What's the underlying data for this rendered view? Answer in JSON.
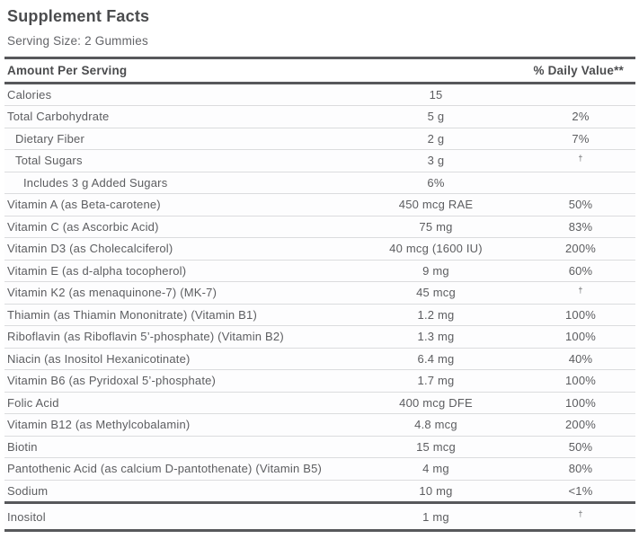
{
  "label": {
    "title": "Supplement Facts",
    "serving_size": "Serving Size: 2 Gummies",
    "header": {
      "amount_per_serving": "Amount Per Serving",
      "daily_value": "% Daily Value**"
    }
  },
  "table": {
    "columns": [
      "name",
      "amount",
      "daily_value"
    ],
    "dagger_symbol": "†",
    "rows": [
      {
        "name": "Calories",
        "amount": "15",
        "dv": "",
        "indent": 0,
        "thick_bottom": false
      },
      {
        "name": "Total Carbohydrate",
        "amount": "5 g",
        "dv": "2%",
        "indent": 0,
        "thick_bottom": false
      },
      {
        "name": "Dietary Fiber",
        "amount": "2 g",
        "dv": "7%",
        "indent": 1,
        "thick_bottom": false
      },
      {
        "name": "Total Sugars",
        "amount": "3 g",
        "dv": "†",
        "indent": 1,
        "thick_bottom": false
      },
      {
        "name": "Includes 3 g Added Sugars",
        "amount": "6%",
        "dv": "",
        "indent": 2,
        "thick_bottom": false
      },
      {
        "name": "Vitamin A (as Beta-carotene)",
        "amount": "450 mcg RAE",
        "dv": "50%",
        "indent": 0,
        "thick_bottom": false
      },
      {
        "name": "Vitamin C (as Ascorbic Acid)",
        "amount": "75 mg",
        "dv": "83%",
        "indent": 0,
        "thick_bottom": false
      },
      {
        "name": "Vitamin D3 (as Cholecalciferol)",
        "amount": "40 mcg (1600 IU)",
        "dv": "200%",
        "indent": 0,
        "thick_bottom": false
      },
      {
        "name": "Vitamin E (as d-alpha tocopherol)",
        "amount": "9 mg",
        "dv": "60%",
        "indent": 0,
        "thick_bottom": false
      },
      {
        "name": "Vitamin K2 (as menaquinone-7) (MK-7)",
        "amount": "45 mcg",
        "dv": "†",
        "indent": 0,
        "thick_bottom": false
      },
      {
        "name": "Thiamin (as Thiamin Mononitrate) (Vitamin B1)",
        "amount": "1.2 mg",
        "dv": "100%",
        "indent": 0,
        "thick_bottom": false
      },
      {
        "name": "Riboflavin (as Riboflavin 5’-phosphate) (Vitamin B2)",
        "amount": "1.3 mg",
        "dv": "100%",
        "indent": 0,
        "thick_bottom": false
      },
      {
        "name": "Niacin (as Inositol Hexanicotinate)",
        "amount": "6.4 mg",
        "dv": "40%",
        "indent": 0,
        "thick_bottom": false
      },
      {
        "name": "Vitamin B6 (as Pyridoxal 5’-phosphate)",
        "amount": "1.7 mg",
        "dv": "100%",
        "indent": 0,
        "thick_bottom": false
      },
      {
        "name": "Folic Acid",
        "amount": "400 mcg DFE",
        "dv": "100%",
        "indent": 0,
        "thick_bottom": false
      },
      {
        "name": "Vitamin B12 (as Methylcobalamin)",
        "amount": "4.8 mcg",
        "dv": "200%",
        "indent": 0,
        "thick_bottom": false
      },
      {
        "name": "Biotin",
        "amount": "15 mcg",
        "dv": "50%",
        "indent": 0,
        "thick_bottom": false
      },
      {
        "name": "Pantothenic Acid (as calcium D-pantothenate) (Vitamin B5)",
        "amount": "4 mg",
        "dv": "80%",
        "indent": 0,
        "thick_bottom": false
      },
      {
        "name": "Sodium",
        "amount": "10 mg",
        "dv": "<1%",
        "indent": 0,
        "thick_bottom": true
      },
      {
        "name": "Inositol",
        "amount": "1 mg",
        "dv": "†",
        "indent": 0,
        "thick_bottom": true,
        "tall": true
      }
    ]
  },
  "colors": {
    "title_text": "#4b4c4e",
    "body_text": "#5c5d60",
    "thick_rule": "#57585b",
    "thin_rule": "#dbdcde",
    "background": "#ffffff"
  }
}
